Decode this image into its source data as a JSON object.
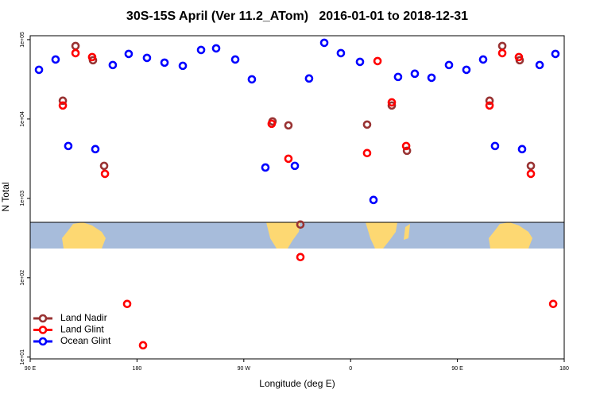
{
  "chart_data": {
    "type": "scatter",
    "title": "30S-15S April (Ver 11.2_ATom)   2016-01-01 to 2018-12-31",
    "xlabel": "Longitude (deg E)",
    "ylabel": "N Total",
    "xlim": [
      90,
      540
    ],
    "xticks": [
      {
        "value": 90,
        "label": "90 E"
      },
      {
        "value": 180,
        "label": "180"
      },
      {
        "value": 270,
        "label": "90 W"
      },
      {
        "value": 360,
        "label": "0"
      },
      {
        "value": 450,
        "label": "90 E"
      },
      {
        "value": 540,
        "label": "180"
      }
    ],
    "ylim": [
      9.5,
      112000
    ],
    "ylog": true,
    "yticks": [
      {
        "value": 10,
        "label": "1e+01"
      },
      {
        "value": 100,
        "label": "1e+02"
      },
      {
        "value": 1000,
        "label": "1e+03"
      },
      {
        "value": 10000,
        "label": "1e+04"
      },
      {
        "value": 100000,
        "label": "1e+05"
      }
    ],
    "legend": "bottom-left",
    "series": [
      {
        "name": "Land Nadir",
        "color": "#993333",
        "x": [
          117.5,
          128.2,
          142.9,
          152.3,
          294.2,
          307.6,
          317.7,
          373.9,
          394.7,
          407.5,
          477.1,
          487.8,
          502.5,
          511.9
        ],
        "values": [
          17000,
          83200,
          55000,
          2570,
          9330,
          8320,
          468,
          8510,
          14800,
          3980,
          17000,
          83200,
          55000,
          2570
        ]
      },
      {
        "name": "Land Glint",
        "color": "#ff0000",
        "x": [
          117.5,
          128.2,
          142.2,
          153.0,
          171.7,
          185.1,
          293.5,
          307.6,
          317.7,
          373.9,
          382.7,
          394.7,
          406.8,
          477.1,
          487.8,
          501.8,
          511.9,
          530.7
        ],
        "values": [
          14800,
          67600,
          60300,
          2040,
          46.8,
          14.1,
          8710,
          3160,
          182,
          3720,
          53700,
          16200,
          4570,
          14800,
          67600,
          60300,
          2040,
          46.8
        ]
      },
      {
        "name": "Ocean Glint",
        "color": "#0000ff",
        "x": [
          97.4,
          111.4,
          122.1,
          144.9,
          159.6,
          173.0,
          188.4,
          203.2,
          218.6,
          234.0,
          246.7,
          262.8,
          276.8,
          288.2,
          313.0,
          325.0,
          337.8,
          351.8,
          367.9,
          379.3,
          400.0,
          414.1,
          428.2,
          442.9,
          457.6,
          471.7,
          481.7,
          504.5,
          519.3,
          532.6
        ],
        "values": [
          41700,
          56200,
          4570,
          4170,
          47900,
          66100,
          58900,
          51300,
          46800,
          74100,
          77600,
          56200,
          31600,
          2450,
          2570,
          32400,
          91200,
          67600,
          52500,
          955,
          33900,
          37200,
          33100,
          47900,
          41700,
          56200,
          4570,
          4170,
          47900,
          66100
        ]
      }
    ]
  }
}
